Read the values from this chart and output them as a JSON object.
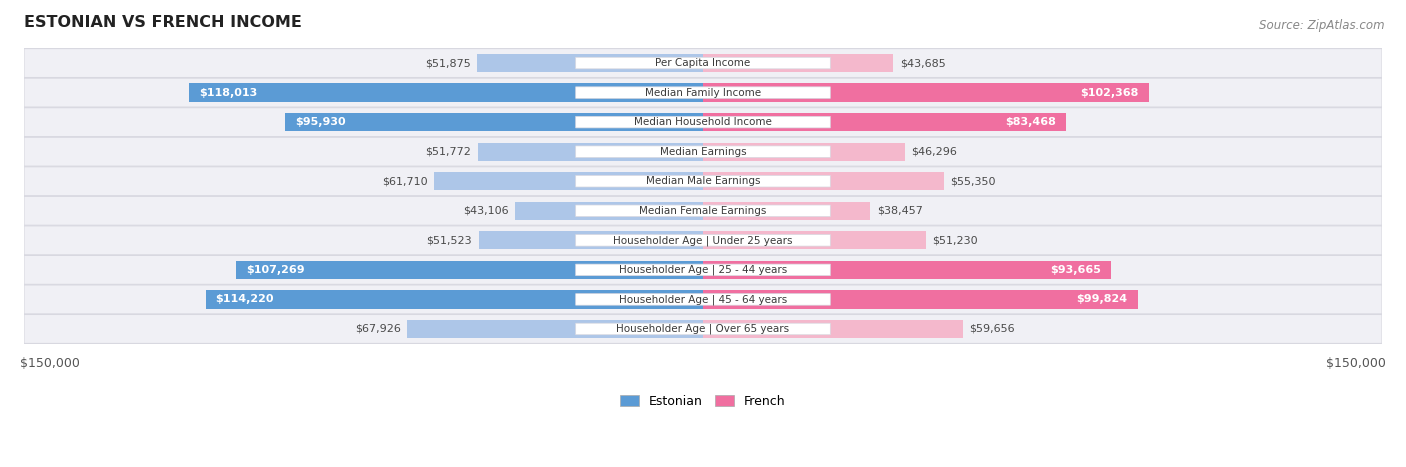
{
  "title": "ESTONIAN VS FRENCH INCOME",
  "source": "Source: ZipAtlas.com",
  "categories": [
    "Per Capita Income",
    "Median Family Income",
    "Median Household Income",
    "Median Earnings",
    "Median Male Earnings",
    "Median Female Earnings",
    "Householder Age | Under 25 years",
    "Householder Age | 25 - 44 years",
    "Householder Age | 45 - 64 years",
    "Householder Age | Over 65 years"
  ],
  "estonian_values": [
    51875,
    118013,
    95930,
    51772,
    61710,
    43106,
    51523,
    107269,
    114220,
    67926
  ],
  "french_values": [
    43685,
    102368,
    83468,
    46296,
    55350,
    38457,
    51230,
    93665,
    99824,
    59656
  ],
  "estonian_labels": [
    "$51,875",
    "$118,013",
    "$95,930",
    "$51,772",
    "$61,710",
    "$43,106",
    "$51,523",
    "$107,269",
    "$114,220",
    "$67,926"
  ],
  "french_labels": [
    "$43,685",
    "$102,368",
    "$83,468",
    "$46,296",
    "$55,350",
    "$38,457",
    "$51,230",
    "$93,665",
    "$99,824",
    "$59,656"
  ],
  "max_value": 150000,
  "estonian_color_light": "#adc6e8",
  "estonian_color_dark": "#5b9bd5",
  "french_color_light": "#f4b8cc",
  "french_color_dark": "#f06fa0",
  "bg_color": "#ffffff",
  "row_bg": "#f0f0f5",
  "row_border": "#d8d8e0",
  "label_bg": "#ffffff",
  "label_border": "#d8d8e0",
  "legend_estonian": "Estonian",
  "legend_french": "French",
  "x_tick_left": "$150,000",
  "x_tick_right": "$150,000",
  "large_threshold": 75000
}
